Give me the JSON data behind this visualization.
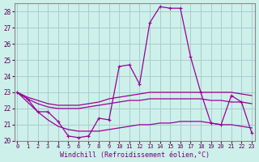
{
  "xlabel": "Windchill (Refroidissement éolien,°C)",
  "background_color": "#cef0ea",
  "line_color": "#990099",
  "grid_color": "#aacccc",
  "hours": [
    0,
    1,
    2,
    3,
    4,
    5,
    6,
    7,
    8,
    9,
    10,
    11,
    12,
    13,
    14,
    15,
    16,
    17,
    18,
    19,
    20,
    21,
    22,
    23
  ],
  "temp_main": [
    23.0,
    22.6,
    21.8,
    21.8,
    21.2,
    20.3,
    20.2,
    20.3,
    21.4,
    21.3,
    24.6,
    24.7,
    23.5,
    27.3,
    28.3,
    28.2,
    28.2,
    25.2,
    23.0,
    21.1,
    21.0,
    22.8,
    22.4,
    20.5
  ],
  "smooth_high": [
    23.0,
    22.7,
    22.5,
    22.3,
    22.2,
    22.2,
    22.2,
    22.3,
    22.4,
    22.6,
    22.7,
    22.8,
    22.9,
    23.0,
    23.0,
    23.0,
    23.0,
    23.0,
    23.0,
    23.0,
    23.0,
    23.0,
    22.9,
    22.8
  ],
  "smooth_mid": [
    23.0,
    22.6,
    22.3,
    22.1,
    22.0,
    22.0,
    22.0,
    22.1,
    22.2,
    22.3,
    22.4,
    22.5,
    22.5,
    22.6,
    22.6,
    22.6,
    22.6,
    22.6,
    22.6,
    22.5,
    22.5,
    22.4,
    22.4,
    22.3
  ],
  "smooth_low": [
    23.0,
    22.4,
    21.8,
    21.3,
    20.9,
    20.7,
    20.6,
    20.6,
    20.6,
    20.7,
    20.8,
    20.9,
    21.0,
    21.0,
    21.1,
    21.1,
    21.2,
    21.2,
    21.2,
    21.1,
    21.0,
    21.0,
    20.9,
    20.8
  ],
  "ylim": [
    20,
    28.5
  ],
  "yticks": [
    20,
    21,
    22,
    23,
    24,
    25,
    26,
    27,
    28
  ],
  "xlim": [
    0,
    23
  ]
}
